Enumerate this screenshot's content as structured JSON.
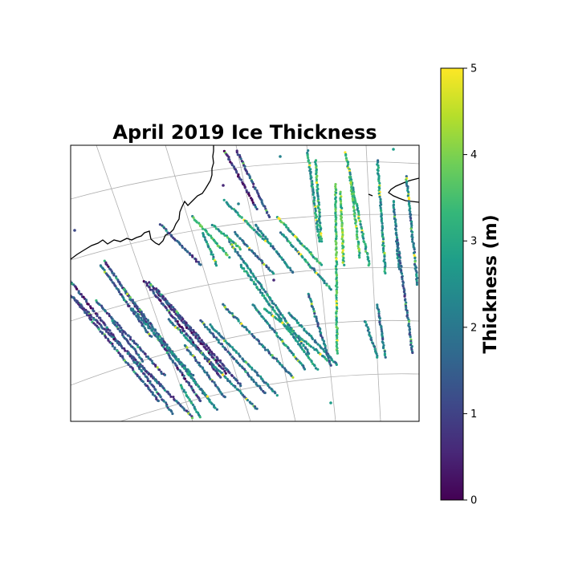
{
  "chart_data": {
    "type": "scatter",
    "title": "April 2019 Ice Thickness",
    "projection": "polar map (cartopy-style) with coastlines and graticule",
    "grid": true,
    "colorbar": {
      "label": "Thickness (m)",
      "colormap": "viridis",
      "range": [
        0,
        5
      ],
      "ticks": [
        "0",
        "1",
        "2",
        "3",
        "4",
        "5"
      ]
    },
    "series": [
      {
        "description": "satellite ground-track thickness samples (diagonal tracks)",
        "track_count": 46,
        "values_range_m": [
          0,
          5
        ],
        "typical_value_m": 1.5
      }
    ],
    "colors": {
      "coastline": "#000000",
      "graticule": "#b0b0b0",
      "viridis": [
        "#440154",
        "#482878",
        "#3e4989",
        "#31688e",
        "#26828e",
        "#1f9e89",
        "#35b779",
        "#6ece58",
        "#b5de2b",
        "#fde725"
      ]
    }
  }
}
